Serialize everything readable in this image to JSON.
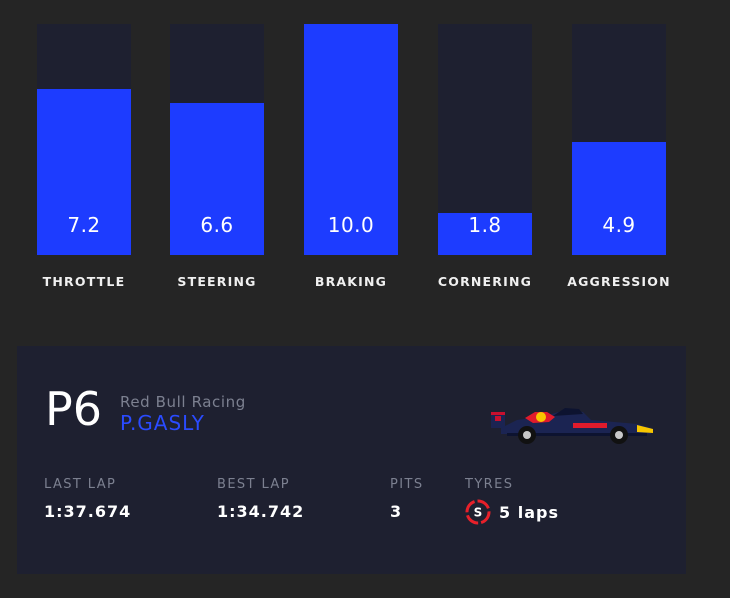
{
  "bars": [
    {
      "label": "THROTTLE",
      "value": "7.2",
      "level": 7.2
    },
    {
      "label": "STEERING",
      "value": "6.6",
      "level": 6.6
    },
    {
      "label": "BRAKING",
      "value": "10.0",
      "level": 10.0
    },
    {
      "label": "CORNERING",
      "value": "1.8",
      "level": 1.8
    },
    {
      "label": "AGGRESSION",
      "value": "4.9",
      "level": 4.9
    }
  ],
  "bar_max": 10,
  "colors": {
    "background": "#252525",
    "track": "#1e2030",
    "fill": "#1d3cff",
    "driver_name": "#2a4bff",
    "muted_label": "#7c8090",
    "tyre_soft": "#e8202a"
  },
  "driver": {
    "position": "P6",
    "team": "Red Bull Racing",
    "name": "P.GASLY",
    "car_icon": "red-bull-f1-car-icon"
  },
  "stats": {
    "last_lap_label": "LAST LAP",
    "last_lap_value": "1:37.674",
    "best_lap_label": "BEST LAP",
    "best_lap_value": "1:34.742",
    "pits_label": "PITS",
    "pits_value": "3",
    "tyres_label": "TYRES",
    "tyre_compound": "S",
    "tyre_laps": "5 laps"
  }
}
